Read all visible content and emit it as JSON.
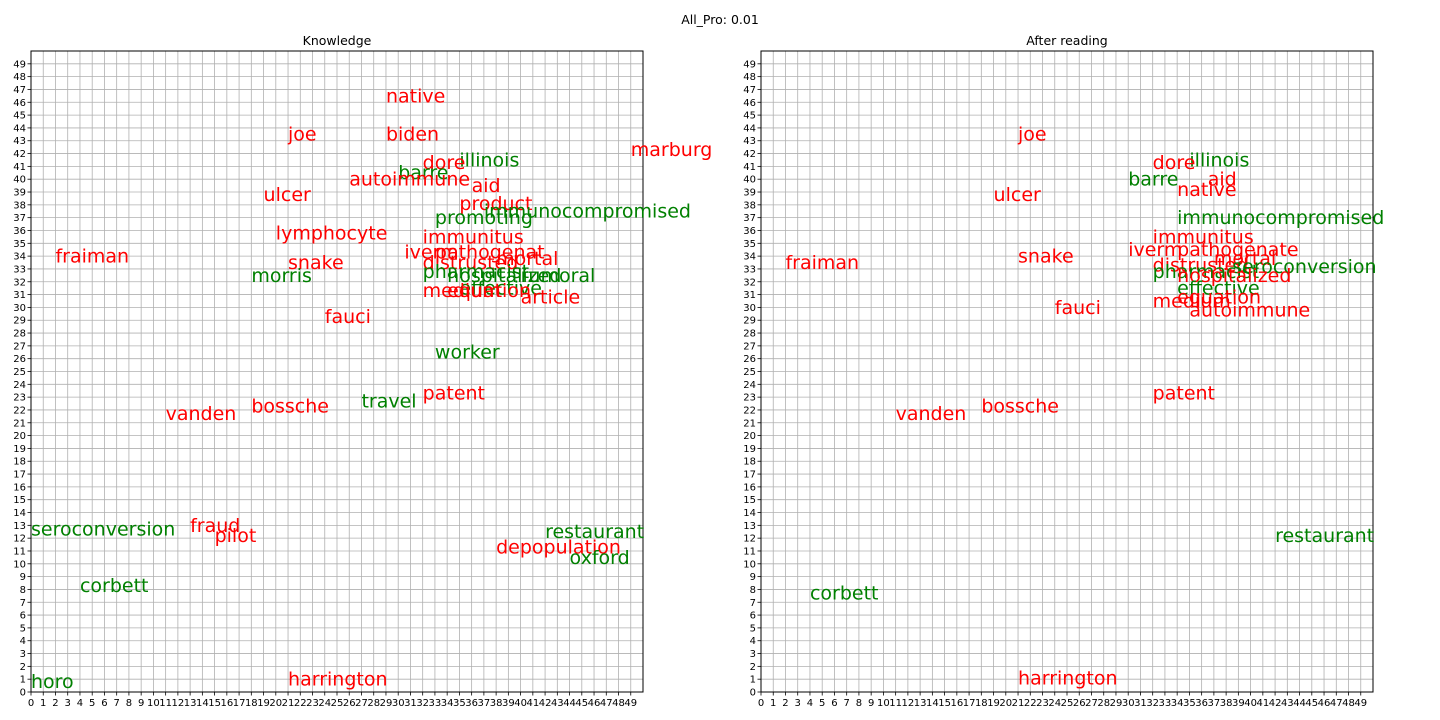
{
  "figure_title": "All_Pro: 0.01",
  "colors": {
    "red": "#ff0000",
    "green": "#008000",
    "grid": "#b0b0b0"
  },
  "chart_data": [
    {
      "type": "scatter",
      "title": "Knowledge",
      "xlim": [
        0,
        50
      ],
      "ylim": [
        0,
        50
      ],
      "ticks": [
        0,
        1,
        2,
        3,
        4,
        5,
        6,
        7,
        8,
        9,
        10,
        11,
        12,
        13,
        14,
        15,
        16,
        17,
        18,
        19,
        20,
        21,
        22,
        23,
        24,
        25,
        26,
        27,
        28,
        29,
        30,
        31,
        32,
        33,
        34,
        35,
        36,
        37,
        38,
        39,
        40,
        41,
        42,
        43,
        44,
        45,
        46,
        47,
        48,
        49
      ],
      "grid": true,
      "words": [
        {
          "text": "native",
          "x": 29.0,
          "y": 46.0,
          "color": "red"
        },
        {
          "text": "joe",
          "x": 21.0,
          "y": 43.0,
          "color": "red"
        },
        {
          "text": "biden",
          "x": 29.0,
          "y": 43.0,
          "color": "red"
        },
        {
          "text": "marburg",
          "x": 49.0,
          "y": 41.8,
          "color": "red"
        },
        {
          "text": "illinois",
          "x": 35.0,
          "y": 41.0,
          "color": "green"
        },
        {
          "text": "dore",
          "x": 32.0,
          "y": 40.8,
          "color": "red"
        },
        {
          "text": "barre",
          "x": 30.0,
          "y": 40.0,
          "color": "green"
        },
        {
          "text": "autoimmune",
          "x": 26.0,
          "y": 39.5,
          "color": "red"
        },
        {
          "text": "aid",
          "x": 36.0,
          "y": 39.0,
          "color": "red"
        },
        {
          "text": "ulcer",
          "x": 19.0,
          "y": 38.3,
          "color": "red"
        },
        {
          "text": "product",
          "x": 35.0,
          "y": 37.6,
          "color": "red"
        },
        {
          "text": "immunocompromised",
          "x": 37.0,
          "y": 37.0,
          "color": "green"
        },
        {
          "text": "promoting",
          "x": 33.0,
          "y": 36.5,
          "color": "green"
        },
        {
          "text": "lymphocyte",
          "x": 20.0,
          "y": 35.3,
          "color": "red"
        },
        {
          "text": "immunitus",
          "x": 32.0,
          "y": 35.0,
          "color": "red"
        },
        {
          "text": "iverm",
          "x": 30.5,
          "y": 33.8,
          "color": "red"
        },
        {
          "text": "pathogenat",
          "x": 33.0,
          "y": 33.8,
          "color": "red"
        },
        {
          "text": "fraiman",
          "x": 2.0,
          "y": 33.5,
          "color": "red"
        },
        {
          "text": "distrusted",
          "x": 32.0,
          "y": 33.0,
          "color": "red"
        },
        {
          "text": "snake",
          "x": 21.0,
          "y": 33.0,
          "color": "red"
        },
        {
          "text": "mortal",
          "x": 38.0,
          "y": 33.3,
          "color": "red"
        },
        {
          "text": "pharmacist",
          "x": 32.0,
          "y": 32.3,
          "color": "green"
        },
        {
          "text": "morris",
          "x": 18.0,
          "y": 32.0,
          "color": "green"
        },
        {
          "text": "hospitalized",
          "x": 34.0,
          "y": 32.0,
          "color": "green"
        },
        {
          "text": "rumoral",
          "x": 40.0,
          "y": 32.0,
          "color": "green"
        },
        {
          "text": "effective",
          "x": 35.0,
          "y": 31.0,
          "color": "green"
        },
        {
          "text": "medium",
          "x": 32.0,
          "y": 30.8,
          "color": "red"
        },
        {
          "text": "equation",
          "x": 34.0,
          "y": 30.8,
          "color": "red"
        },
        {
          "text": "article",
          "x": 40.0,
          "y": 30.3,
          "color": "red"
        },
        {
          "text": "fauci",
          "x": 24.0,
          "y": 28.8,
          "color": "red"
        },
        {
          "text": "worker",
          "x": 33.0,
          "y": 26.0,
          "color": "green"
        },
        {
          "text": "patent",
          "x": 32.0,
          "y": 22.8,
          "color": "red"
        },
        {
          "text": "travel",
          "x": 27.0,
          "y": 22.2,
          "color": "green"
        },
        {
          "text": "bossche",
          "x": 18.0,
          "y": 21.8,
          "color": "red"
        },
        {
          "text": "vanden",
          "x": 11.0,
          "y": 21.2,
          "color": "red"
        },
        {
          "text": "fraud",
          "x": 13.0,
          "y": 12.5,
          "color": "red"
        },
        {
          "text": "seroconversion",
          "x": 0.0,
          "y": 12.2,
          "color": "green"
        },
        {
          "text": "pilot",
          "x": 15.0,
          "y": 11.7,
          "color": "red"
        },
        {
          "text": "restaurant",
          "x": 42.0,
          "y": 12.0,
          "color": "green"
        },
        {
          "text": "depopulation",
          "x": 38.0,
          "y": 10.8,
          "color": "red"
        },
        {
          "text": "oxford",
          "x": 44.0,
          "y": 10.0,
          "color": "green"
        },
        {
          "text": "corbett",
          "x": 4.0,
          "y": 7.8,
          "color": "green"
        },
        {
          "text": "harrington",
          "x": 21.0,
          "y": 0.5,
          "color": "red"
        },
        {
          "text": "horo",
          "x": 0.0,
          "y": 0.3,
          "color": "green"
        }
      ]
    },
    {
      "type": "scatter",
      "title": "After reading",
      "xlim": [
        0,
        50
      ],
      "ylim": [
        0,
        50
      ],
      "ticks": [
        0,
        1,
        2,
        3,
        4,
        5,
        6,
        7,
        8,
        9,
        10,
        11,
        12,
        13,
        14,
        15,
        16,
        17,
        18,
        19,
        20,
        21,
        22,
        23,
        24,
        25,
        26,
        27,
        28,
        29,
        30,
        31,
        32,
        33,
        34,
        35,
        36,
        37,
        38,
        39,
        40,
        41,
        42,
        43,
        44,
        45,
        46,
        47,
        48,
        49
      ],
      "grid": true,
      "words": [
        {
          "text": "joe",
          "x": 21.0,
          "y": 43.0,
          "color": "red"
        },
        {
          "text": "illinois",
          "x": 35.0,
          "y": 41.0,
          "color": "green"
        },
        {
          "text": "dore",
          "x": 32.0,
          "y": 40.8,
          "color": "red"
        },
        {
          "text": "aid",
          "x": 36.5,
          "y": 39.5,
          "color": "red"
        },
        {
          "text": "barre",
          "x": 30.0,
          "y": 39.5,
          "color": "green"
        },
        {
          "text": "native",
          "x": 34.0,
          "y": 38.7,
          "color": "red"
        },
        {
          "text": "ulcer",
          "x": 19.0,
          "y": 38.3,
          "color": "red"
        },
        {
          "text": "immunocompromised",
          "x": 34.0,
          "y": 36.5,
          "color": "green"
        },
        {
          "text": "immunitus",
          "x": 32.0,
          "y": 35.0,
          "color": "red"
        },
        {
          "text": "iverm",
          "x": 30.0,
          "y": 34.0,
          "color": "red"
        },
        {
          "text": "pathogenate",
          "x": 34.0,
          "y": 34.0,
          "color": "red"
        },
        {
          "text": "mortal",
          "x": 37.0,
          "y": 33.3,
          "color": "red"
        },
        {
          "text": "fraiman",
          "x": 2.0,
          "y": 33.0,
          "color": "red"
        },
        {
          "text": "snake",
          "x": 21.0,
          "y": 33.5,
          "color": "red"
        },
        {
          "text": "distrusted",
          "x": 32.0,
          "y": 32.8,
          "color": "red"
        },
        {
          "text": "pharmacist",
          "x": 32.0,
          "y": 32.3,
          "color": "green"
        },
        {
          "text": "seroconversion",
          "x": 38.5,
          "y": 32.7,
          "color": "green"
        },
        {
          "text": "hospitalized",
          "x": 34.0,
          "y": 32.0,
          "color": "red"
        },
        {
          "text": "effective",
          "x": 34.0,
          "y": 31.0,
          "color": "green"
        },
        {
          "text": "medium",
          "x": 32.0,
          "y": 30.0,
          "color": "red"
        },
        {
          "text": "equation",
          "x": 34.0,
          "y": 30.3,
          "color": "red"
        },
        {
          "text": "autoimmune",
          "x": 35.0,
          "y": 29.3,
          "color": "red"
        },
        {
          "text": "fauci",
          "x": 24.0,
          "y": 29.5,
          "color": "red"
        },
        {
          "text": "patent",
          "x": 32.0,
          "y": 22.8,
          "color": "red"
        },
        {
          "text": "bossche",
          "x": 18.0,
          "y": 21.8,
          "color": "red"
        },
        {
          "text": "vanden",
          "x": 11.0,
          "y": 21.2,
          "color": "red"
        },
        {
          "text": "restaurant",
          "x": 42.0,
          "y": 11.7,
          "color": "green"
        },
        {
          "text": "corbett",
          "x": 4.0,
          "y": 7.2,
          "color": "green"
        },
        {
          "text": "harrington",
          "x": 21.0,
          "y": 0.6,
          "color": "red"
        }
      ]
    }
  ]
}
